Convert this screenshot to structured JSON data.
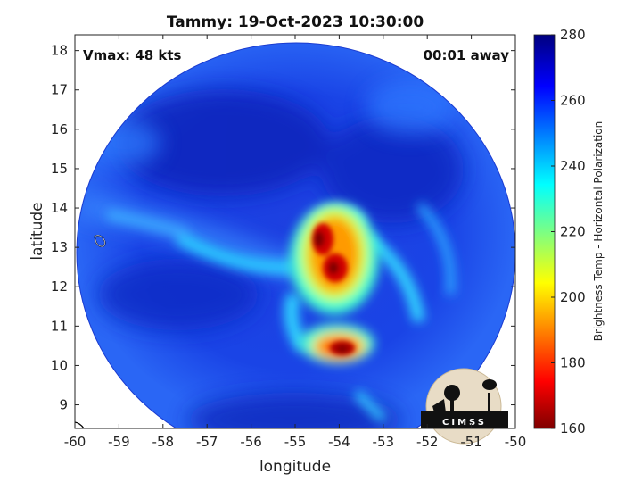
{
  "chart_data": {
    "type": "heatmap",
    "title": "Tammy: 19-Oct-2023 10:30:00",
    "xlabel": "longitude",
    "ylabel": "latitude",
    "xlim": [
      -60,
      -50
    ],
    "ylim": [
      8.4,
      18.4
    ],
    "xticks": [
      "-60",
      "-59",
      "-58",
      "-57",
      "-56",
      "-55",
      "-54",
      "-53",
      "-52",
      "-51",
      "-50"
    ],
    "yticks": [
      "9",
      "10",
      "11",
      "12",
      "13",
      "14",
      "15",
      "16",
      "17",
      "18"
    ],
    "annotation_left": "Vmax: 48 kts",
    "annotation_right": "00:01 away",
    "colorbar": {
      "label": "Brightness Temp - Horizontal Polarization",
      "min": 160,
      "max": 280,
      "ticks": [
        "160",
        "180",
        "200",
        "220",
        "240",
        "260",
        "280"
      ],
      "colormap": "jet"
    },
    "swath": {
      "center": [
        -55,
        13.4
      ],
      "radius_deg": 5
    },
    "features": [
      {
        "name": "core",
        "lon": -54.2,
        "lat": 12.8,
        "min_temp": 165
      },
      {
        "name": "southern-cell",
        "lon": -54.0,
        "lat": 10.4,
        "min_temp": 175
      },
      {
        "name": "western-spiral-band",
        "lon": -57.0,
        "lat": 12.8,
        "min_temp": 230
      },
      {
        "name": "eastern-spiral-band",
        "lon": -52.5,
        "lat": 12.5,
        "min_temp": 230
      }
    ],
    "background_temp": 265
  },
  "logo": {
    "text": "CIMSS"
  }
}
